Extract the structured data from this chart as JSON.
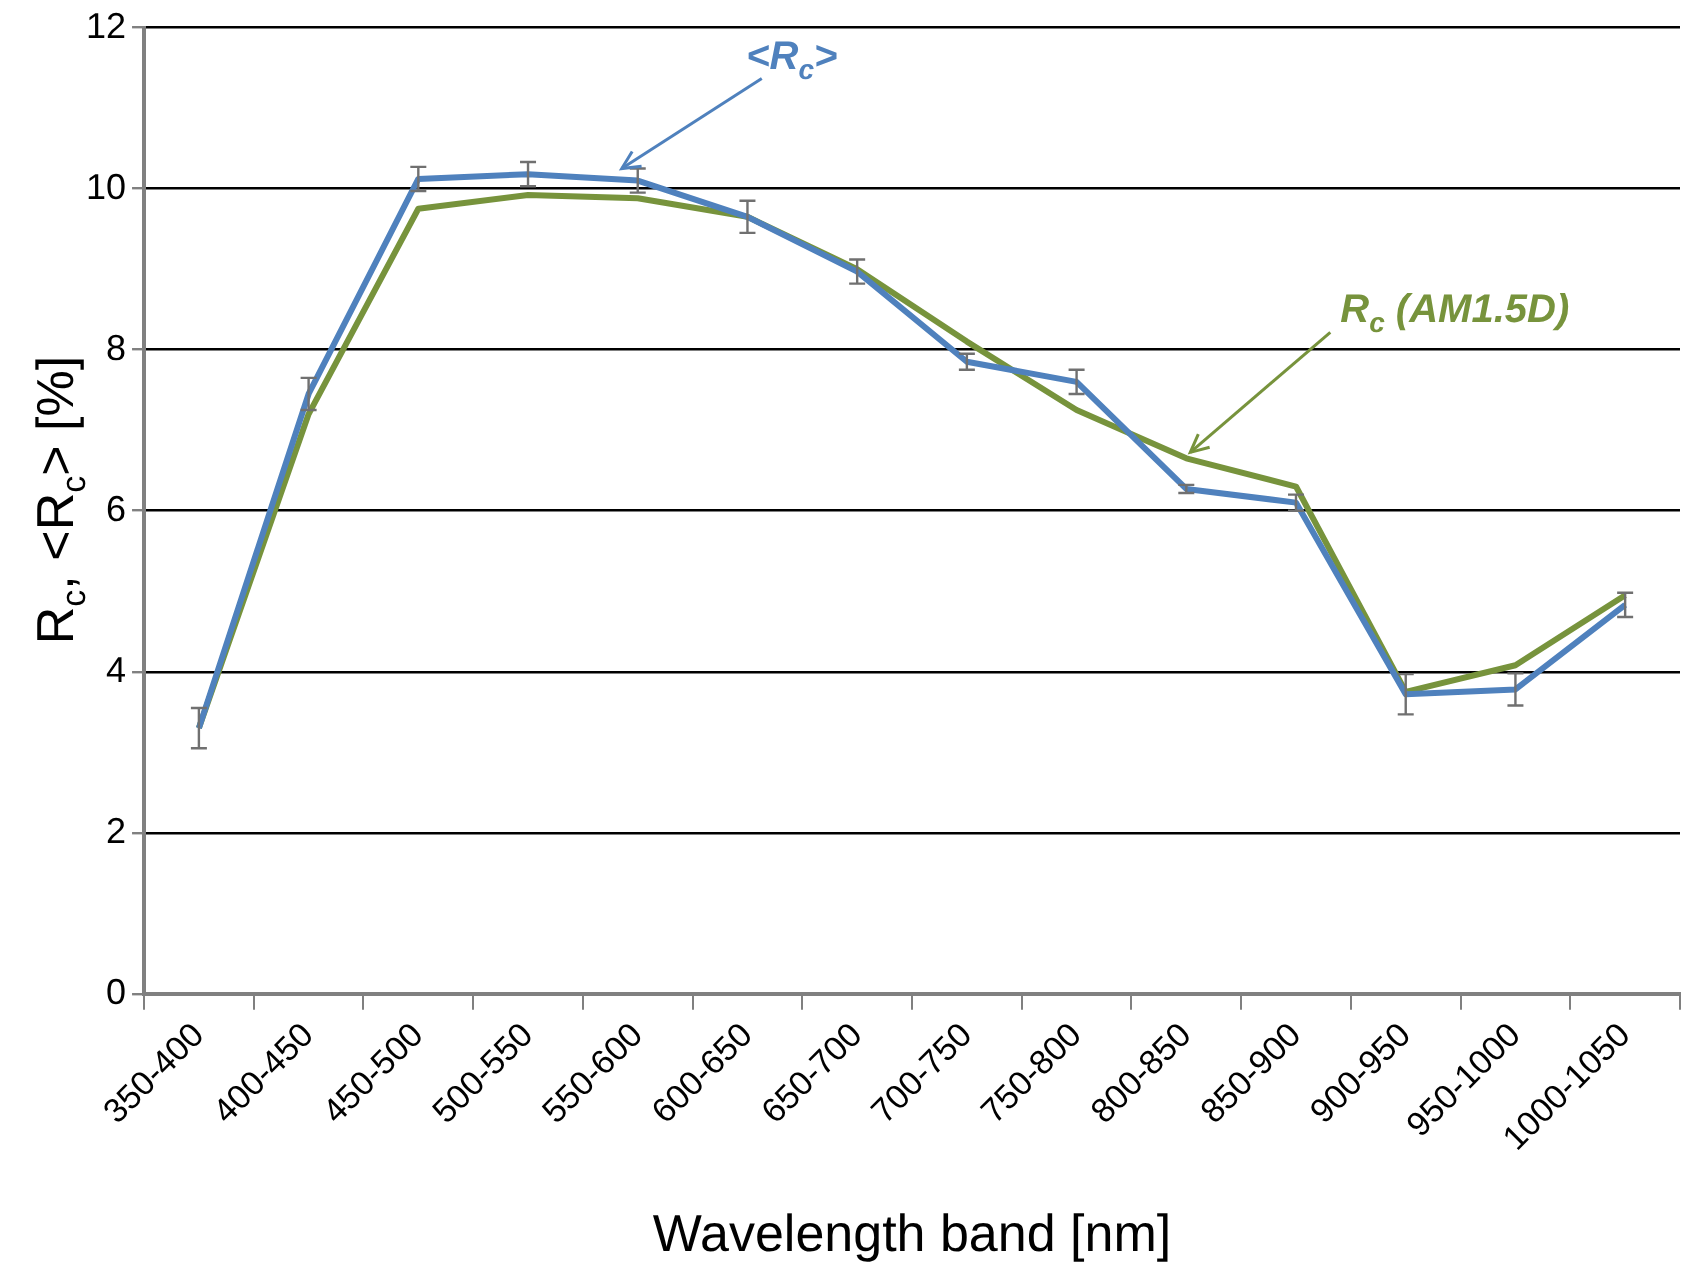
{
  "chart_data": {
    "type": "line",
    "xlabel": "Wavelength band [nm]",
    "ylabel": "R$_{c}$, <R$_{c}$> [%]",
    "categories": [
      "350-400",
      "400-450",
      "450-500",
      "500-550",
      "550-600",
      "600-650",
      "650-700",
      "700-750",
      "750-800",
      "800-850",
      "850-900",
      "900-950",
      "950-1000",
      "1000-1050"
    ],
    "series": [
      {
        "name": "<R$_{c}$>",
        "color": "#4f81bd",
        "values": [
          3.3,
          7.45,
          10.12,
          10.18,
          10.1,
          9.65,
          8.97,
          7.85,
          7.6,
          6.27,
          6.1,
          3.72,
          3.78,
          4.83
        ],
        "errors": [
          0.25,
          0.2,
          0.15,
          0.15,
          0.15,
          0.2,
          0.15,
          0.1,
          0.15,
          0.05,
          0.1,
          0.25,
          0.2,
          0.15
        ]
      },
      {
        "name": "R$_{c}$ (AM1.5D)",
        "color": "#77933c",
        "values": [
          3.3,
          7.2,
          9.75,
          9.92,
          9.88,
          9.65,
          9.0,
          8.1,
          7.25,
          6.65,
          6.3,
          3.75,
          4.08,
          4.95
        ]
      }
    ],
    "ylim": [
      0,
      12
    ],
    "yticks": [
      0,
      2,
      4,
      6,
      8,
      10,
      12
    ],
    "grid": "y",
    "legend": false,
    "line_style": "solid"
  }
}
